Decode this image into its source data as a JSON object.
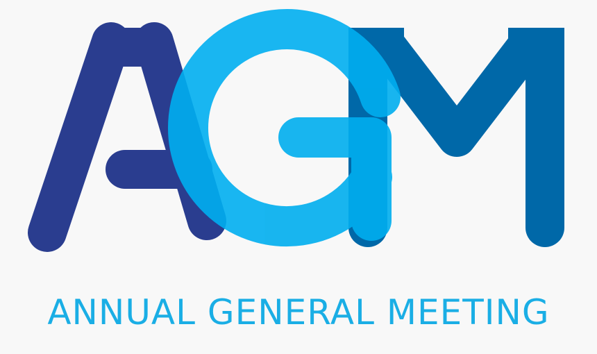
{
  "logo": {
    "text": "AGM",
    "icon": "agm-monogram-logo",
    "colors": {
      "letter_a": "#2a3d8f",
      "letter_g": "#00aeef",
      "letter_m": "#0068a8",
      "overlap_dark": "#1f5b9c",
      "overlap_light": "#7fd0f7",
      "background": "#f8f8f8"
    }
  },
  "tagline": {
    "text": "ANNUAL GENERAL MEETING",
    "color": "#1aaee5"
  }
}
